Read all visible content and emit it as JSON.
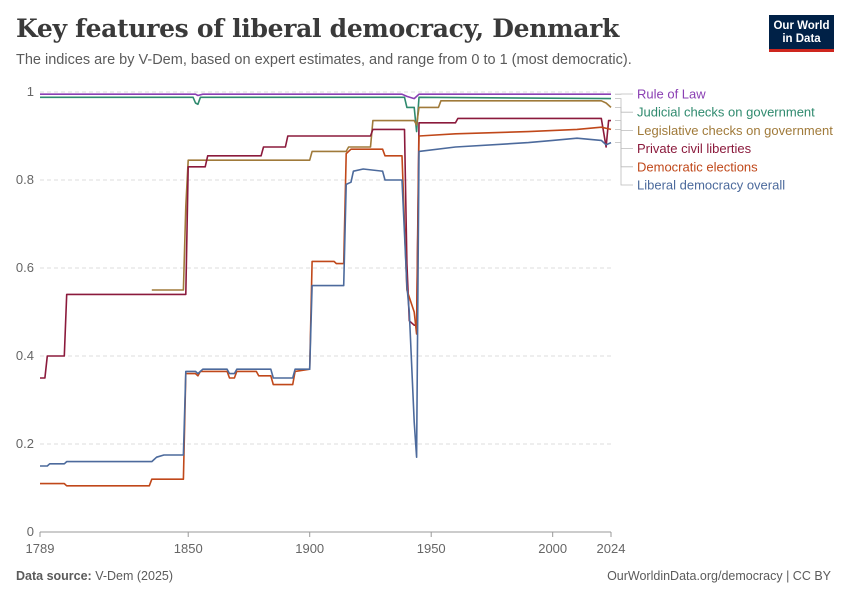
{
  "header": {
    "title": "Key features of liberal democracy, Denmark",
    "subtitle": "The indices are by V-Dem, based on expert estimates, and range from 0 to 1 (most democratic).",
    "logo_line1": "Our World",
    "logo_line2": "in Data"
  },
  "footer": {
    "source_label": "Data source:",
    "source_value": "V-Dem (2025)",
    "url": "OurWorldinData.org/democracy | CC BY"
  },
  "chart_data": {
    "type": "line",
    "title": "Key features of liberal democracy, Denmark",
    "xlim": [
      1789,
      2024
    ],
    "ylim": [
      0,
      1
    ],
    "x_ticks": [
      1789,
      1850,
      1900,
      1950,
      2000,
      2024
    ],
    "y_ticks": [
      0,
      0.2,
      0.4,
      0.6,
      0.8,
      1
    ],
    "y_tick_labels": [
      "0",
      "0.2",
      "0.4",
      "0.6",
      "0.8",
      "1"
    ],
    "grid": "horizontal-dashed",
    "legend": "right",
    "series": [
      {
        "name": "Rule of Law",
        "color": "#8a3fb3",
        "points": [
          [
            1789,
            0.995
          ],
          [
            1853,
            0.995
          ],
          [
            1854,
            0.992
          ],
          [
            1856,
            0.995
          ],
          [
            1938,
            0.995
          ],
          [
            1940,
            0.99
          ],
          [
            1943,
            0.985
          ],
          [
            1945,
            0.995
          ],
          [
            2024,
            0.995
          ]
        ]
      },
      {
        "name": "Judicial checks on government",
        "color": "#2f8a6e",
        "points": [
          [
            1789,
            0.988
          ],
          [
            1852,
            0.988
          ],
          [
            1853,
            0.975
          ],
          [
            1854,
            0.972
          ],
          [
            1855,
            0.988
          ],
          [
            1939,
            0.988
          ],
          [
            1940,
            0.965
          ],
          [
            1943,
            0.965
          ],
          [
            1944,
            0.91
          ],
          [
            1945,
            0.988
          ],
          [
            2024,
            0.985
          ]
        ]
      },
      {
        "name": "Legislative checks on government",
        "color": "#a07a3a",
        "points": [
          [
            1835,
            0.55
          ],
          [
            1848,
            0.55
          ],
          [
            1849,
            0.74
          ],
          [
            1850,
            0.845
          ],
          [
            1900,
            0.845
          ],
          [
            1901,
            0.865
          ],
          [
            1915,
            0.865
          ],
          [
            1916,
            0.875
          ],
          [
            1925,
            0.875
          ],
          [
            1926,
            0.935
          ],
          [
            1943,
            0.935
          ],
          [
            1944,
            0.925
          ],
          [
            1945,
            0.965
          ],
          [
            1953,
            0.965
          ],
          [
            1954,
            0.98
          ],
          [
            2020,
            0.98
          ],
          [
            2022,
            0.975
          ],
          [
            2024,
            0.965
          ]
        ]
      },
      {
        "name": "Private civil liberties",
        "color": "#8b1a3c",
        "points": [
          [
            1789,
            0.35
          ],
          [
            1791,
            0.35
          ],
          [
            1792,
            0.4
          ],
          [
            1799,
            0.4
          ],
          [
            1800,
            0.54
          ],
          [
            1849,
            0.54
          ],
          [
            1850,
            0.83
          ],
          [
            1857,
            0.83
          ],
          [
            1858,
            0.855
          ],
          [
            1880,
            0.855
          ],
          [
            1881,
            0.875
          ],
          [
            1890,
            0.875
          ],
          [
            1891,
            0.9
          ],
          [
            1925,
            0.9
          ],
          [
            1926,
            0.915
          ],
          [
            1939,
            0.915
          ],
          [
            1940,
            0.61
          ],
          [
            1941,
            0.48
          ],
          [
            1943,
            0.47
          ],
          [
            1944,
            0.47
          ],
          [
            1945,
            0.93
          ],
          [
            1960,
            0.93
          ],
          [
            1961,
            0.94
          ],
          [
            2020,
            0.94
          ],
          [
            2022,
            0.875
          ],
          [
            2023,
            0.935
          ],
          [
            2024,
            0.935
          ]
        ]
      },
      {
        "name": "Democratic elections",
        "color": "#c0481a",
        "points": [
          [
            1789,
            0.11
          ],
          [
            1799,
            0.11
          ],
          [
            1800,
            0.105
          ],
          [
            1834,
            0.105
          ],
          [
            1835,
            0.12
          ],
          [
            1848,
            0.12
          ],
          [
            1849,
            0.36
          ],
          [
            1853,
            0.36
          ],
          [
            1854,
            0.355
          ],
          [
            1855,
            0.365
          ],
          [
            1860,
            0.365
          ],
          [
            1866,
            0.365
          ],
          [
            1867,
            0.35
          ],
          [
            1869,
            0.35
          ],
          [
            1870,
            0.365
          ],
          [
            1878,
            0.365
          ],
          [
            1879,
            0.355
          ],
          [
            1884,
            0.355
          ],
          [
            1885,
            0.335
          ],
          [
            1893,
            0.335
          ],
          [
            1894,
            0.365
          ],
          [
            1900,
            0.37
          ],
          [
            1901,
            0.615
          ],
          [
            1910,
            0.615
          ],
          [
            1911,
            0.61
          ],
          [
            1914,
            0.61
          ],
          [
            1915,
            0.86
          ],
          [
            1917,
            0.87
          ],
          [
            1930,
            0.87
          ],
          [
            1931,
            0.855
          ],
          [
            1938,
            0.855
          ],
          [
            1940,
            0.55
          ],
          [
            1943,
            0.5
          ],
          [
            1944,
            0.45
          ],
          [
            1945,
            0.9
          ],
          [
            1960,
            0.905
          ],
          [
            1990,
            0.91
          ],
          [
            2010,
            0.915
          ],
          [
            2020,
            0.92
          ],
          [
            2024,
            0.915
          ]
        ]
      },
      {
        "name": "Liberal democracy overall",
        "color": "#4c6a9c",
        "points": [
          [
            1789,
            0.15
          ],
          [
            1792,
            0.15
          ],
          [
            1793,
            0.155
          ],
          [
            1799,
            0.155
          ],
          [
            1800,
            0.16
          ],
          [
            1835,
            0.16
          ],
          [
            1837,
            0.17
          ],
          [
            1840,
            0.175
          ],
          [
            1848,
            0.175
          ],
          [
            1849,
            0.365
          ],
          [
            1853,
            0.365
          ],
          [
            1854,
            0.36
          ],
          [
            1856,
            0.37
          ],
          [
            1866,
            0.37
          ],
          [
            1867,
            0.36
          ],
          [
            1869,
            0.36
          ],
          [
            1870,
            0.37
          ],
          [
            1884,
            0.37
          ],
          [
            1885,
            0.35
          ],
          [
            1893,
            0.35
          ],
          [
            1894,
            0.37
          ],
          [
            1900,
            0.37
          ],
          [
            1901,
            0.56
          ],
          [
            1914,
            0.56
          ],
          [
            1915,
            0.79
          ],
          [
            1917,
            0.795
          ],
          [
            1918,
            0.82
          ],
          [
            1922,
            0.825
          ],
          [
            1930,
            0.82
          ],
          [
            1931,
            0.8
          ],
          [
            1938,
            0.8
          ],
          [
            1940,
            0.56
          ],
          [
            1941,
            0.5
          ],
          [
            1943,
            0.25
          ],
          [
            1944,
            0.17
          ],
          [
            1945,
            0.865
          ],
          [
            1960,
            0.875
          ],
          [
            1990,
            0.885
          ],
          [
            2000,
            0.89
          ],
          [
            2010,
            0.895
          ],
          [
            2020,
            0.89
          ],
          [
            2022,
            0.88
          ],
          [
            2024,
            0.885
          ]
        ]
      }
    ]
  }
}
